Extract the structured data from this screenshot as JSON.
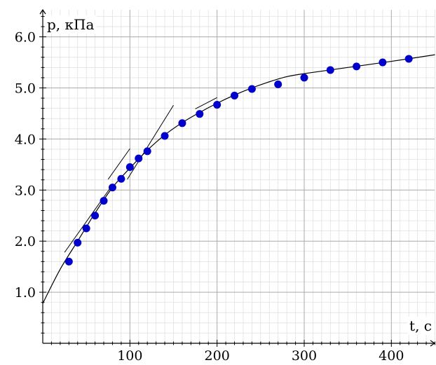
{
  "chart_data": {
    "type": "scatter",
    "title": "",
    "xlabel": "t, c",
    "ylabel": "p, кПа",
    "xlim": [
      0,
      450
    ],
    "ylim": [
      0,
      6.4
    ],
    "grid": true,
    "x_ticks": [
      100,
      200,
      300,
      400
    ],
    "x_tick_labels": [
      "100",
      "200",
      "300",
      "400"
    ],
    "y_ticks": [
      1,
      2,
      3,
      4,
      5,
      6
    ],
    "y_tick_labels": [
      "1.0",
      "2.0",
      "3.0",
      "4.0",
      "5.0",
      "6.0"
    ],
    "marker_color": "#0000cc",
    "series": [
      {
        "x": [
          30,
          40,
          50,
          60,
          70,
          80,
          90,
          100,
          110,
          120,
          140,
          160,
          180,
          200,
          220,
          240,
          270,
          300,
          330,
          360,
          390,
          420
        ],
        "y": [
          1.6,
          1.97,
          2.25,
          2.5,
          2.79,
          3.05,
          3.22,
          3.45,
          3.62,
          3.76,
          4.06,
          4.31,
          4.49,
          4.67,
          4.85,
          4.98,
          5.07,
          5.2,
          5.35,
          5.42,
          5.5,
          5.57
        ]
      }
    ],
    "fit_curve": {
      "x": [
        0,
        20,
        40,
        60,
        80,
        100,
        120,
        140,
        160,
        180,
        200,
        220,
        240,
        260,
        280,
        300,
        350,
        400,
        450
      ],
      "y": [
        0.78,
        1.45,
        2.0,
        2.55,
        3.05,
        3.43,
        3.78,
        4.08,
        4.32,
        4.52,
        4.7,
        4.86,
        5.0,
        5.12,
        5.22,
        5.28,
        5.4,
        5.52,
        5.65
      ]
    },
    "tangents": [
      {
        "x": [
          25,
          77
        ],
        "y": [
          1.78,
          3.03
        ]
      },
      {
        "x": [
          75,
          100
        ],
        "y": [
          3.21,
          3.81
        ]
      },
      {
        "x": [
          97,
          150
        ],
        "y": [
          3.21,
          4.66
        ]
      },
      {
        "x": [
          175,
          200
        ],
        "y": [
          4.59,
          4.81
        ]
      }
    ]
  }
}
